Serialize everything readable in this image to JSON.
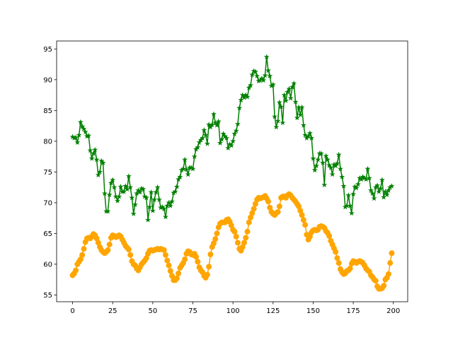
{
  "chart_data": {
    "type": "line",
    "x": [
      0,
      1,
      2,
      3,
      4,
      5,
      6,
      7,
      8,
      9,
      10,
      11,
      12,
      13,
      14,
      15,
      16,
      17,
      18,
      19,
      20,
      21,
      22,
      23,
      24,
      25,
      26,
      27,
      28,
      29,
      30,
      31,
      32,
      33,
      34,
      35,
      36,
      37,
      38,
      39,
      40,
      41,
      42,
      43,
      44,
      45,
      46,
      47,
      48,
      49,
      50,
      51,
      52,
      53,
      54,
      55,
      56,
      57,
      58,
      59,
      60,
      61,
      62,
      63,
      64,
      65,
      66,
      67,
      68,
      69,
      70,
      71,
      72,
      73,
      74,
      75,
      76,
      77,
      78,
      79,
      80,
      81,
      82,
      83,
      84,
      85,
      86,
      87,
      88,
      89,
      90,
      91,
      92,
      93,
      94,
      95,
      96,
      97,
      98,
      99,
      100,
      101,
      102,
      103,
      104,
      105,
      106,
      107,
      108,
      109,
      110,
      111,
      112,
      113,
      114,
      115,
      116,
      117,
      118,
      119,
      120,
      121,
      122,
      123,
      124,
      125,
      126,
      127,
      128,
      129,
      130,
      131,
      132,
      133,
      134,
      135,
      136,
      137,
      138,
      139,
      140,
      141,
      142,
      143,
      144,
      145,
      146,
      147,
      148,
      149,
      150,
      151,
      152,
      153,
      154,
      155,
      156,
      157,
      158,
      159,
      160,
      161,
      162,
      163,
      164,
      165,
      166,
      167,
      168,
      169,
      170,
      171,
      172,
      173,
      174,
      175,
      176,
      177,
      178,
      179,
      180,
      181,
      182,
      183,
      184,
      185,
      186,
      187,
      188,
      189,
      190,
      191,
      192,
      193,
      194,
      195,
      196,
      197,
      198,
      199
    ],
    "series": [
      {
        "color": "#008000",
        "marker": "star",
        "values": [
          80.7,
          80.5,
          80.6,
          79.8,
          81,
          83.1,
          82.4,
          82,
          81.5,
          80.8,
          80.9,
          78.5,
          77.2,
          78,
          78.6,
          77,
          74.5,
          75,
          76.8,
          76.5,
          71.5,
          68.6,
          68.6,
          71.3,
          73.2,
          73.7,
          72.5,
          71,
          70.3,
          71,
          72.6,
          71.8,
          71.8,
          72.7,
          72.2,
          74.3,
          72.5,
          70.8,
          68.2,
          69.7,
          71.5,
          72,
          71.7,
          72.3,
          72.2,
          71,
          70.8,
          67.2,
          69.3,
          71.7,
          68.7,
          70.5,
          71.7,
          72.5,
          70.5,
          69.2,
          69.3,
          69,
          67.7,
          69.5,
          70,
          69.5,
          70.2,
          71.6,
          71.8,
          72.6,
          73.8,
          74.2,
          75.3,
          75.5,
          77,
          75.4,
          74.6,
          75.7,
          75.7,
          75.5,
          77.5,
          78.7,
          79,
          79.8,
          80.2,
          80.5,
          81.8,
          81,
          79.6,
          82.7,
          82.3,
          82.7,
          84.4,
          83,
          82.6,
          83.2,
          79.7,
          80.3,
          81.2,
          80.8,
          80.5,
          78.9,
          79.5,
          79.3,
          80,
          81.2,
          81.7,
          82.8,
          85.4,
          86.7,
          87.5,
          87.1,
          87.5,
          87.2,
          88.7,
          89.1,
          90.8,
          91.4,
          91.3,
          90.6,
          89.8,
          89.9,
          90.2,
          89.9,
          90.7,
          93.7,
          91.5,
          90.6,
          89,
          89.2,
          84,
          82.3,
          83.3,
          86.3,
          85.6,
          83,
          87.5,
          86.6,
          88,
          88.5,
          87,
          88.8,
          89.4,
          86.4,
          83.8,
          85.5,
          84.3,
          85.5,
          82.6,
          81,
          80.5,
          80.8,
          81.3,
          80.5,
          77.2,
          75.3,
          76,
          77,
          78,
          78,
          76.5,
          72.9,
          77.6,
          77,
          76.1,
          75.7,
          74.6,
          76.2,
          76,
          76.4,
          77.8,
          75.5,
          74.2,
          72.7,
          69.3,
          69.5,
          71.2,
          69.5,
          68.3,
          71.4,
          72.6,
          72.4,
          73,
          74,
          73.8,
          74.2,
          74,
          73.8,
          75.5,
          74,
          72,
          71.5,
          70.7,
          72.5,
          72.8,
          71.8,
          72.3,
          73.7,
          70.9,
          71.8,
          71.3,
          72,
          72.5,
          72.7
        ]
      },
      {
        "color": "#ffa500",
        "marker": "circle",
        "values": [
          58.2,
          58.5,
          59,
          60,
          60.4,
          60.8,
          61.5,
          62.5,
          63.6,
          64.2,
          64.3,
          64.2,
          64.5,
          64.9,
          64.7,
          64.2,
          63.5,
          62.8,
          62.3,
          62,
          61.8,
          62,
          62.3,
          63.2,
          64.3,
          64.7,
          64.6,
          64.4,
          64.5,
          64.7,
          64.5,
          64,
          63.5,
          63,
          62.7,
          62.4,
          61.5,
          60.5,
          60,
          59.8,
          59.3,
          59,
          59.5,
          60,
          60.3,
          60.6,
          61,
          61.7,
          62.2,
          62.3,
          62.2,
          62.3,
          62.4,
          62.5,
          62.4,
          62.5,
          62.4,
          62.3,
          61.5,
          60.6,
          59.8,
          58.9,
          58.1,
          57.4,
          57.4,
          57.7,
          58.5,
          59.4,
          59.8,
          60.2,
          60.8,
          61.7,
          62.1,
          62,
          61.6,
          61.5,
          61.7,
          61.2,
          60.4,
          59.5,
          59,
          58.7,
          58.1,
          57.8,
          58.3,
          59.6,
          61.6,
          62.8,
          63.4,
          64.1,
          65,
          66,
          66.6,
          66.8,
          66.8,
          66.8,
          67.2,
          67.3,
          66.9,
          66.3,
          65.6,
          65.3,
          64.5,
          63.5,
          62.5,
          62.2,
          62.8,
          63.5,
          64.3,
          65.3,
          66.8,
          67.6,
          68.3,
          69,
          69.8,
          70.5,
          70.8,
          70.7,
          70.8,
          70.9,
          71.1,
          70.7,
          70.2,
          69.2,
          68.5,
          68.2,
          68,
          68.3,
          68.5,
          69.4,
          70.8,
          71,
          71,
          70.8,
          71.2,
          71.4,
          71.2,
          70.8,
          70.5,
          70.2,
          69.8,
          69.4,
          68.7,
          68,
          67.2,
          66.4,
          64.8,
          64,
          64.5,
          65.2,
          65.5,
          65.6,
          65.5,
          65.6,
          66.1,
          66.2,
          66.1,
          65.9,
          65.4,
          65.1,
          64.6,
          63.8,
          63.2,
          62.6,
          62,
          61,
          60.2,
          59.2,
          58.7,
          58.4,
          58.5,
          58.9,
          59,
          59.3,
          60.1,
          60.5,
          60.4,
          60.2,
          60.4,
          60.5,
          60.4,
          60.2,
          59.8,
          59.3,
          59,
          58.8,
          58.2,
          57.9,
          57.5,
          57.3,
          56.4,
          56,
          56,
          56.1,
          56.5,
          57.5,
          57.8,
          58.4,
          60.2,
          61.8
        ]
      }
    ],
    "xlim": [
      -9.95,
      208.95
    ],
    "xticks": [
      0,
      25,
      50,
      75,
      100,
      125,
      150,
      175,
      200
    ],
    "ylim": [
      53.9,
      96.3
    ],
    "yticks": [
      55,
      60,
      65,
      70,
      75,
      80,
      85,
      90,
      95
    ]
  }
}
